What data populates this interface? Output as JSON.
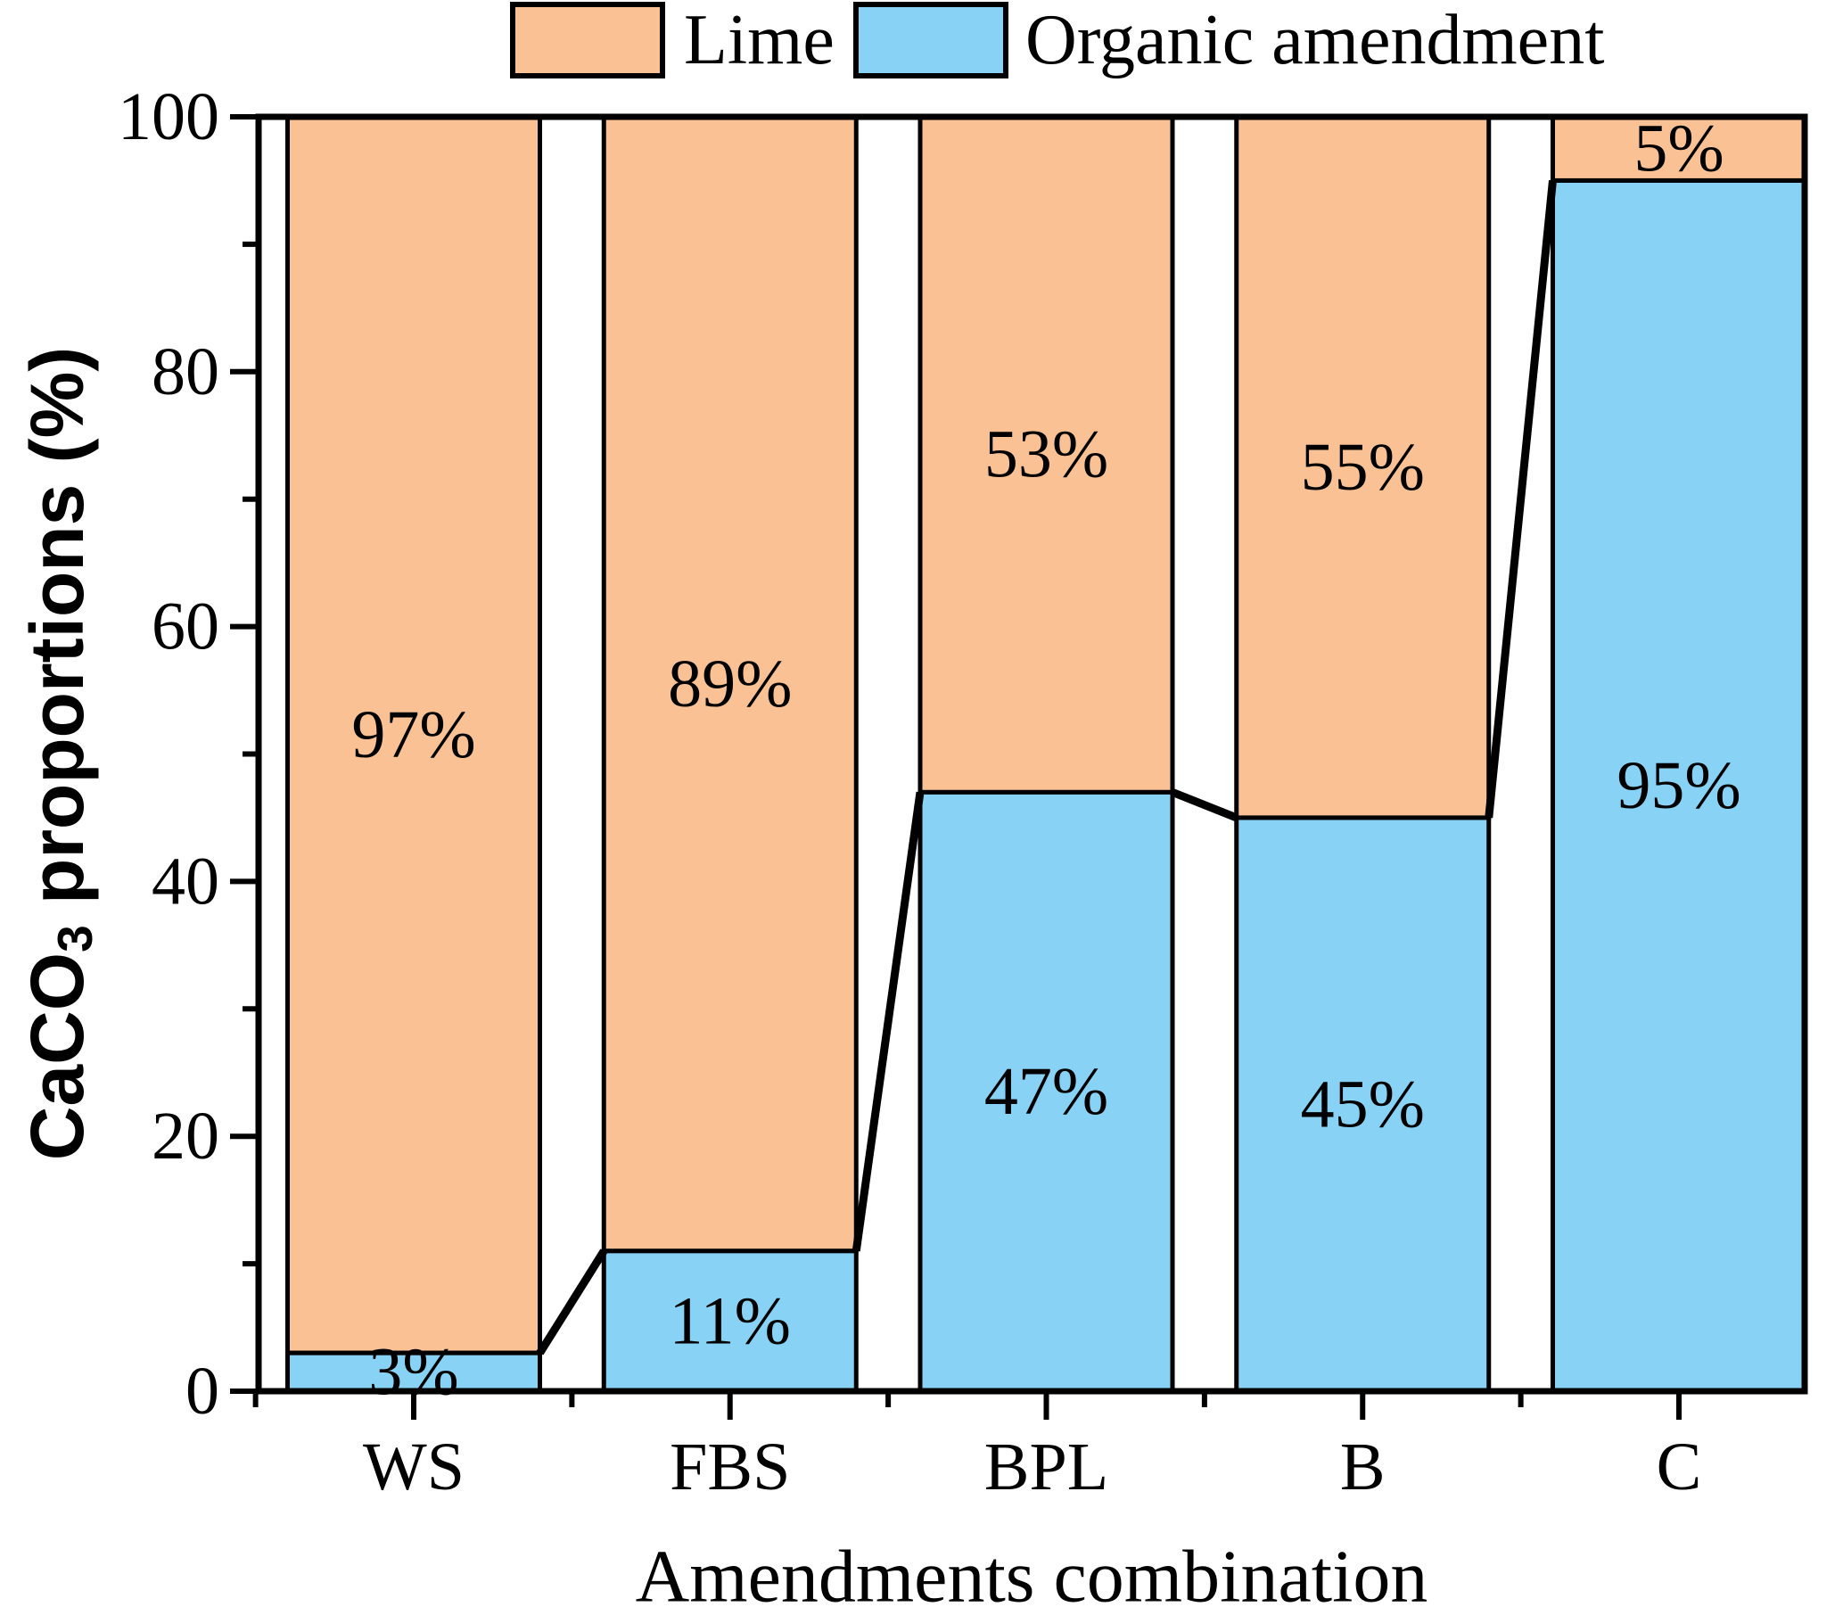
{
  "figure": {
    "background": "#FFFFFF",
    "frame_color": "#000000",
    "ylabel_parts": {
      "pre": "CaCO",
      "sub": "3",
      "post": " proportions (%)"
    }
  },
  "chart_data": {
    "type": "bar",
    "stacked": true,
    "orientation": "vertical",
    "categories": [
      "WS",
      "FBS",
      "BPL",
      "B",
      "C"
    ],
    "series": [
      {
        "name": "Lime",
        "color": "#FAC294",
        "values": [
          97,
          89,
          53,
          55,
          5
        ],
        "labels": [
          "97%",
          "89%",
          "53%",
          "55%",
          "5%"
        ]
      },
      {
        "name": "Organic amendment",
        "color": "#87D2F5",
        "values": [
          3,
          11,
          47,
          45,
          95
        ],
        "labels": [
          "3%",
          "11%",
          "47%",
          "45%",
          "95%"
        ]
      }
    ],
    "title": "",
    "xlabel": "Amendments combination",
    "ylabel": "CaCO3 proportions (%)",
    "ylim": [
      0,
      100
    ],
    "yticks": [
      0,
      20,
      40,
      60,
      80,
      100
    ],
    "minor_yticks": [
      10,
      30,
      50,
      70,
      90
    ],
    "grid": false,
    "legend_position": "top-center",
    "bar_outline_color": "#000000",
    "connector_color": "#000000",
    "annotation": "Thick black lines connect the tops of the Organic amendment segments of adjacent bars"
  }
}
